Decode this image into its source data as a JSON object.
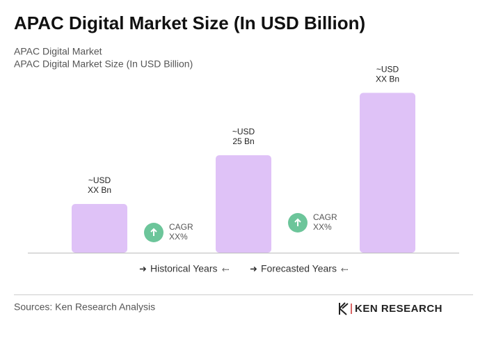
{
  "chart_data": {
    "type": "bar",
    "title": "APAC Digital Market Size (In USD Billion)",
    "subtitle": [
      "APAC Digital Market",
      "APAC Digital Market Size (In USD Billion)"
    ],
    "categories": [
      null,
      null,
      null
    ],
    "values": [
      12.5,
      25,
      41
    ],
    "value_labels": [
      [
        "~USD",
        "XX Bn"
      ],
      [
        "~USD",
        "25 Bn"
      ],
      [
        "~USD",
        "XX Bn"
      ]
    ],
    "color": "#dfc2f7",
    "ylim": [
      0,
      45
    ],
    "annotations": [
      [
        "CAGR",
        "XX%"
      ],
      [
        "CAGR",
        "XX%"
      ]
    ],
    "annotation_color": "#6cc59a",
    "legend": [
      "Historical Years",
      "Forecasted Years"
    ]
  },
  "footer": {
    "source": "Sources: Ken Research Analysis",
    "logo": "KEN RESEARCH"
  }
}
